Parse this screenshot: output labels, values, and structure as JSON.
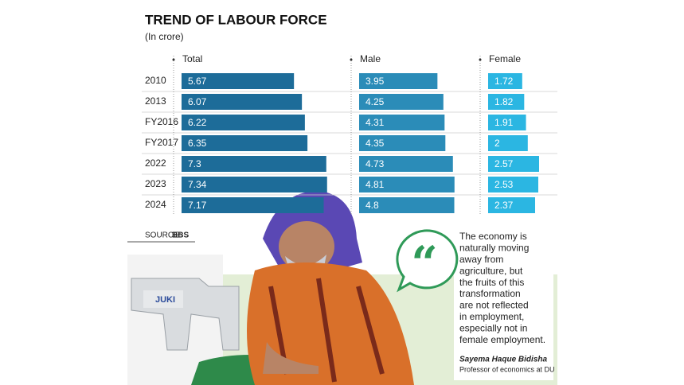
{
  "chart_data": {
    "type": "bar",
    "title": "TREND OF LABOUR FORCE",
    "subtitle": "(In crore)",
    "categories": [
      "2010",
      "2013",
      "FY2016",
      "FY2017",
      "2022",
      "2023",
      "2024"
    ],
    "series": [
      {
        "name": "Total",
        "color": "#1d6c99",
        "values": [
          5.67,
          6.07,
          6.22,
          6.35,
          7.3,
          7.34,
          7.17
        ]
      },
      {
        "name": "Male",
        "color": "#2b8cb8",
        "values": [
          3.95,
          4.25,
          4.31,
          4.35,
          4.73,
          4.81,
          4.8
        ]
      },
      {
        "name": "Female",
        "color": "#2bb6e2",
        "values": [
          1.72,
          1.82,
          1.91,
          2,
          2.57,
          2.53,
          2.37
        ]
      }
    ]
  },
  "source_label": "SOURCE:",
  "source": "BBS",
  "quote": [
    "The economy is",
    "naturally moving",
    "away from",
    "agriculture, but",
    "the fruits of this",
    "transformation",
    "are not reflected",
    "in employment,",
    "especially not in",
    "female employment."
  ],
  "attribution": {
    "name": "Sayema Haque Bidisha",
    "role": "Professor of economics at DU"
  }
}
